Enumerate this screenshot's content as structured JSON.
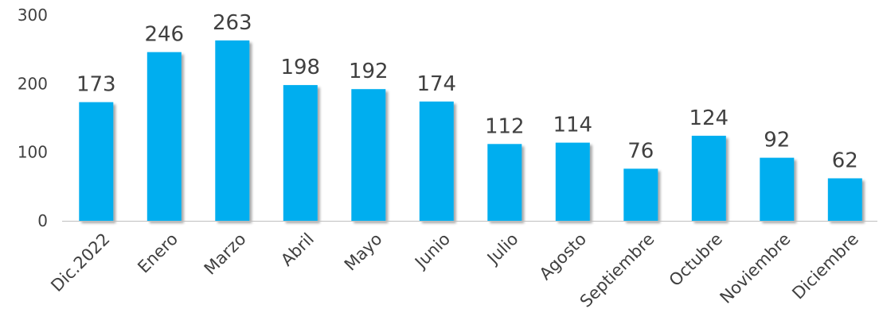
{
  "chart_data": {
    "type": "bar",
    "title": "",
    "xlabel": "",
    "ylabel": "",
    "categories": [
      "Dic.2022",
      "Enero",
      "Marzo",
      "Abril",
      "Mayo",
      "Junio",
      "Julio",
      "Agosto",
      "Septiembre",
      "Octubre",
      "Noviembre",
      "Diciembre"
    ],
    "values": [
      173,
      246,
      263,
      198,
      192,
      174,
      112,
      114,
      76,
      124,
      92,
      62
    ],
    "ylim": [
      0,
      300
    ],
    "yticks": [
      0,
      100,
      200,
      300
    ],
    "grid": false,
    "legend": "none",
    "data_labels": true,
    "colors": {
      "bar": "#00AEEF",
      "bar_shadow": "#3a3a3a",
      "axis": "#bfbfbf",
      "text": "#404040"
    }
  }
}
